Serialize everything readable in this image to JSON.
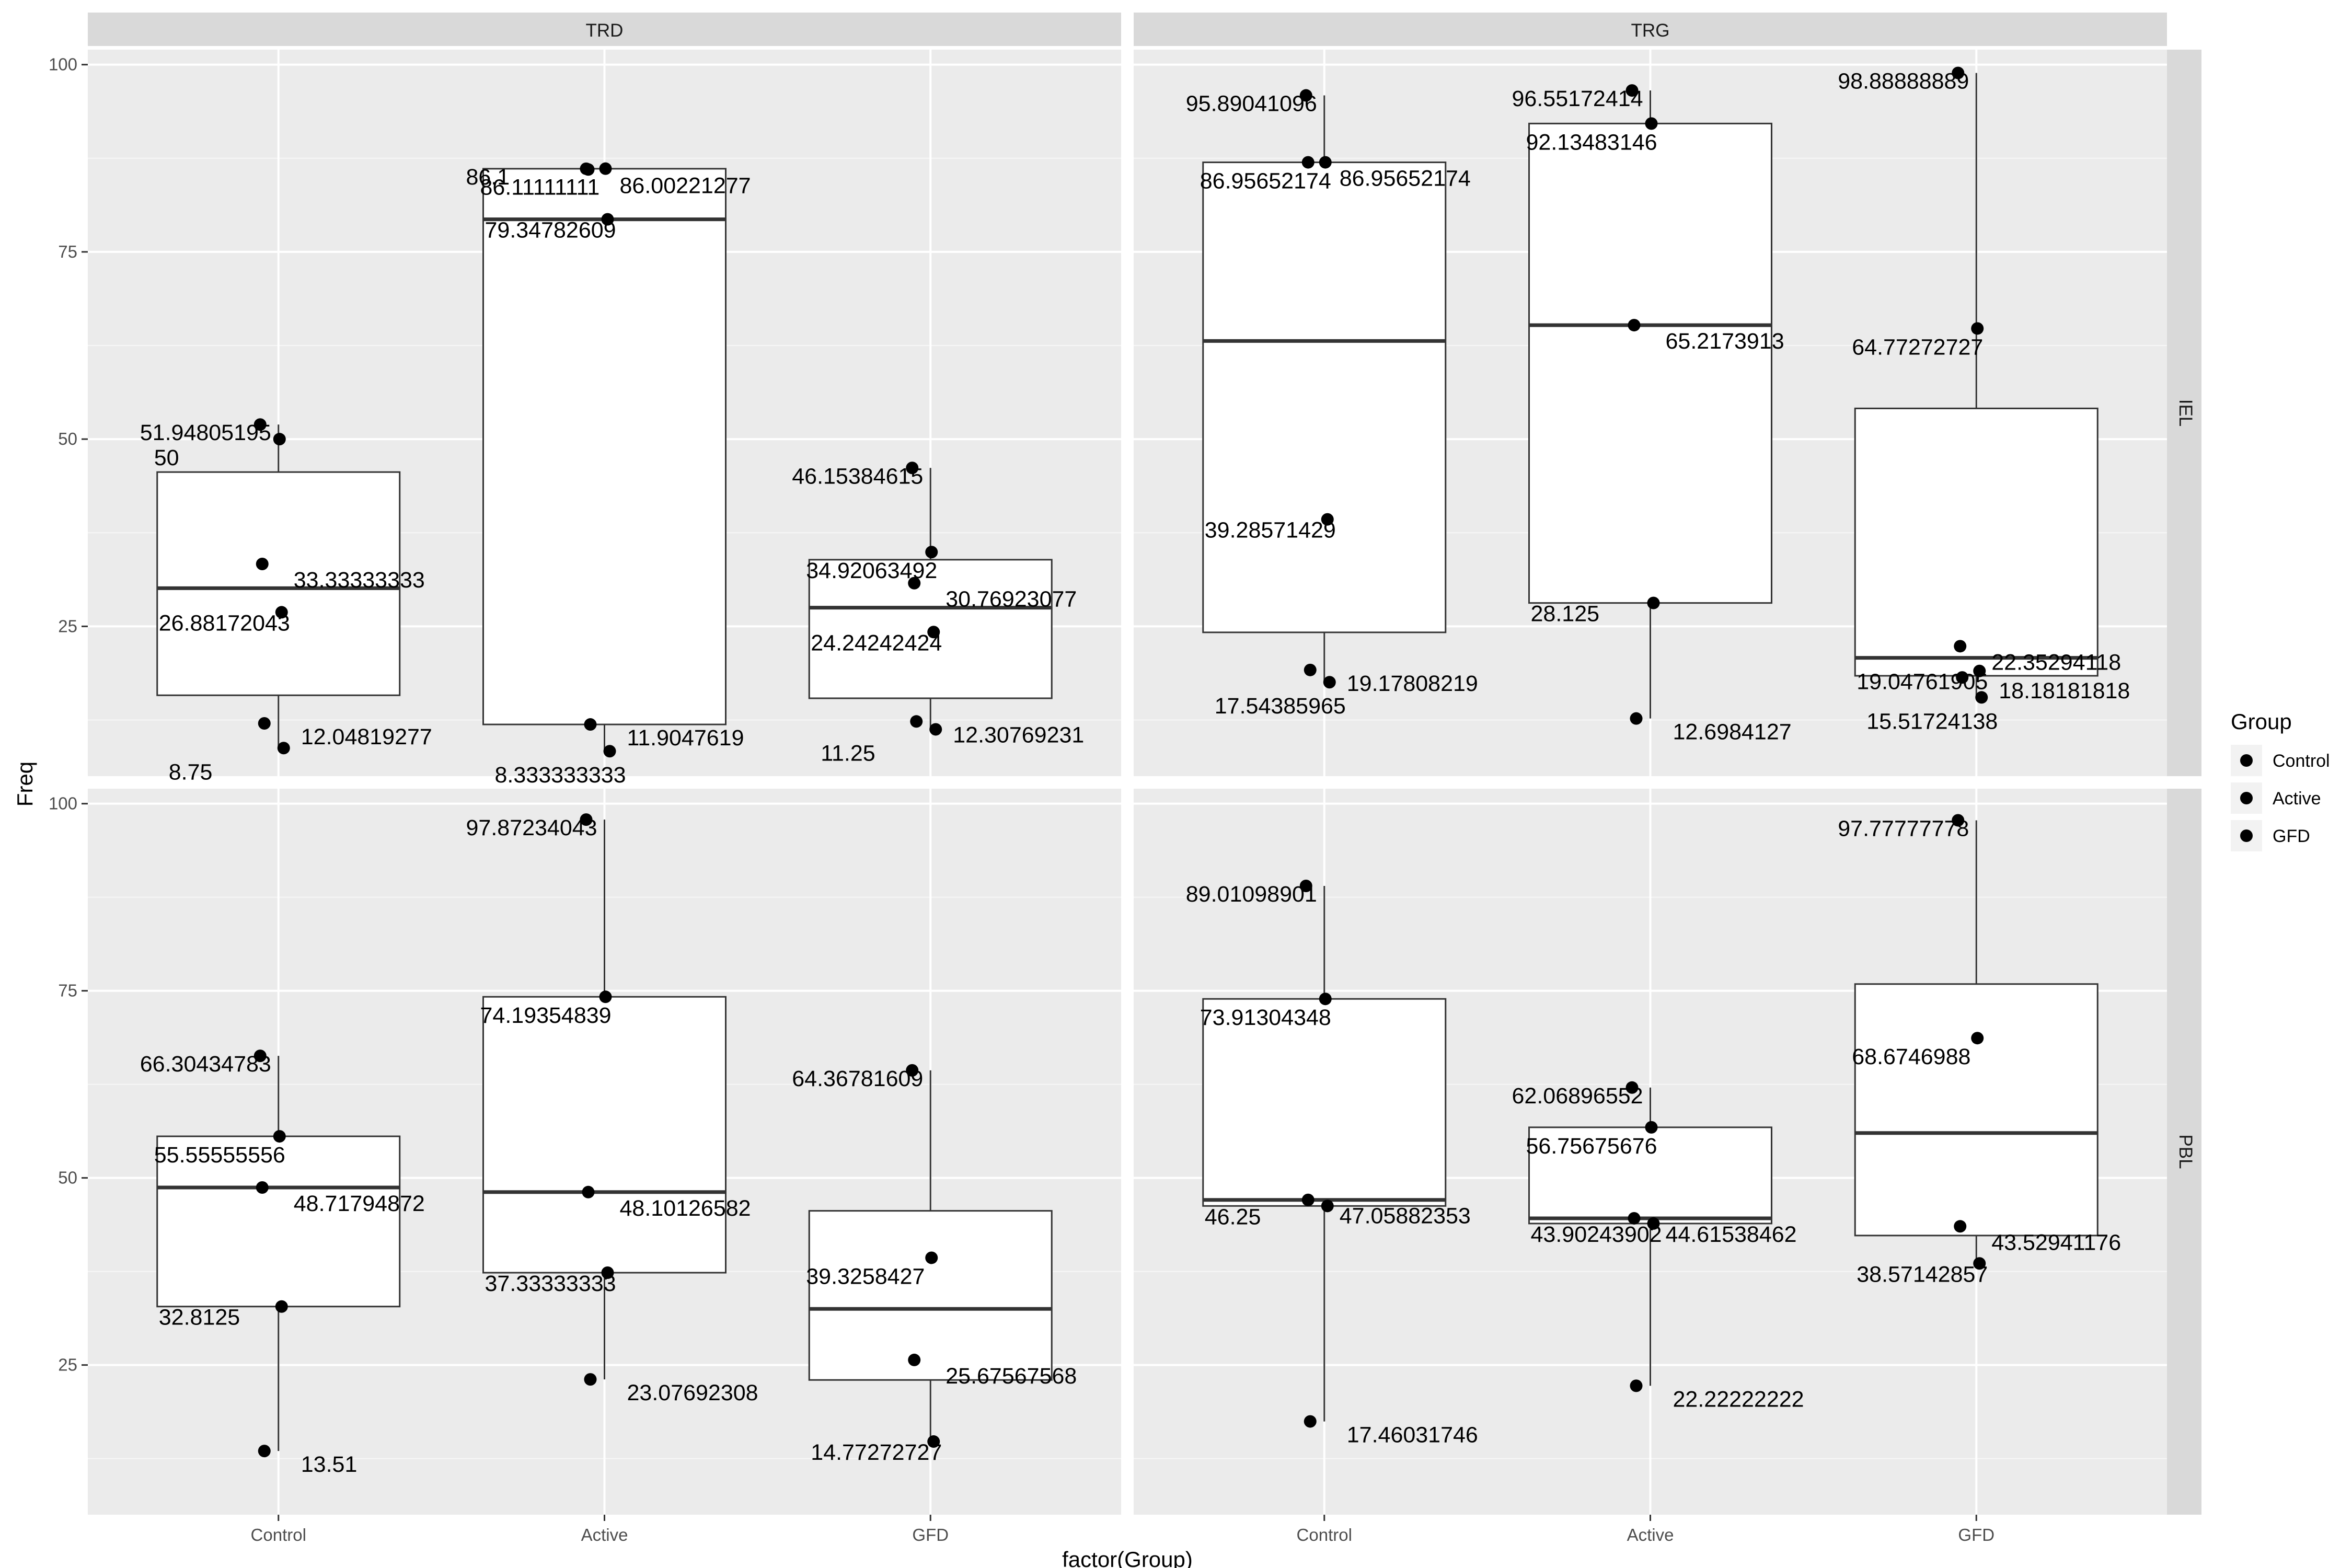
{
  "chart_data": {
    "type": "box",
    "xlabel": "factor(Group)",
    "ylabel": "Freq",
    "categories": [
      "Control",
      "Active",
      "GFD"
    ],
    "ylim": [
      5,
      102
    ],
    "yticks": [
      25,
      50,
      75,
      100
    ],
    "facet_cols": [
      "TRD",
      "TRG"
    ],
    "facet_rows": [
      "IEL",
      "PBL"
    ],
    "legend": {
      "title": "Group",
      "entries": [
        "Control",
        "Active",
        "GFD"
      ],
      "position": "right"
    },
    "grid": true,
    "panels": [
      {
        "col": "TRD",
        "row": "IEL",
        "boxes": [
          {
            "group": "Control",
            "whisker_low": 8.75,
            "q1": 15.8,
            "median": 30.1,
            "q3": 45.6,
            "whisker_high": 51.94805195,
            "points": [
              {
                "value": 51.94805195,
                "label": "51.94805195"
              },
              {
                "value": 50,
                "label": "50"
              },
              {
                "value": 33.33333333,
                "label": "33.33333333"
              },
              {
                "value": 26.88172043,
                "label": "26.88172043"
              },
              {
                "value": 12.04819277,
                "label": "12.04819277"
              },
              {
                "value": 8.75,
                "label": "8.75"
              }
            ]
          },
          {
            "group": "Active",
            "whisker_low": 8.333333333,
            "q1": 11.9047619,
            "median": 79.34782609,
            "q3": 86.1,
            "whisker_high": 86.1,
            "points": [
              {
                "value": 86.1,
                "label": "86.1"
              },
              {
                "value": 86.11111111,
                "label": "86.11111111"
              },
              {
                "value": 86.0,
                "label": "86.00221277"
              },
              {
                "value": 79.34782609,
                "label": "79.34782609"
              },
              {
                "value": 11.9047619,
                "label": "11.9047619"
              },
              {
                "value": 8.333333333,
                "label": "8.333333333"
              }
            ]
          },
          {
            "group": "GFD",
            "whisker_low": 11.25,
            "q1": 15.4,
            "median": 27.5,
            "q3": 33.9,
            "whisker_high": 46.15384615,
            "points": [
              {
                "value": 46.15384615,
                "label": "46.15384615"
              },
              {
                "value": 34.92063492,
                "label": "34.92063492"
              },
              {
                "value": 30.76923077,
                "label": "30.76923077"
              },
              {
                "value": 24.24242424,
                "label": "24.24242424"
              },
              {
                "value": 12.30769231,
                "label": "12.30769231"
              },
              {
                "value": 11.25,
                "label": "11.25"
              }
            ]
          }
        ]
      },
      {
        "col": "TRG",
        "row": "IEL",
        "boxes": [
          {
            "group": "Control",
            "whisker_low": 17.54385965,
            "q1": 24.2,
            "median": 63.1,
            "q3": 86.95652174,
            "whisker_high": 95.89041096,
            "points": [
              {
                "value": 95.89041096,
                "label": "95.89041096"
              },
              {
                "value": 86.95652174,
                "label": "86.95652174"
              },
              {
                "value": 86.95652174,
                "label": "86.95652174"
              },
              {
                "value": 39.28571429,
                "label": "39.28571429"
              },
              {
                "value": 19.17808219,
                "label": "19.17808219"
              },
              {
                "value": 17.54385965,
                "label": "17.54385965"
              }
            ]
          },
          {
            "group": "Active",
            "whisker_low": 12.6984127,
            "q1": 28.125,
            "median": 65.2173913,
            "q3": 92.13483146,
            "whisker_high": 96.55172414,
            "points": [
              {
                "value": 96.55172414,
                "label": "96.55172414"
              },
              {
                "value": 92.13483146,
                "label": "92.13483146"
              },
              {
                "value": 65.2173913,
                "label": "65.2173913"
              },
              {
                "value": 28.125,
                "label": "28.125"
              },
              {
                "value": 12.6984127,
                "label": "12.6984127"
              }
            ]
          },
          {
            "group": "GFD",
            "whisker_low": 15.51724138,
            "q1": 18.4,
            "median": 20.8,
            "q3": 54.1,
            "whisker_high": 98.88888889,
            "points": [
              {
                "value": 98.88888889,
                "label": "98.88888889"
              },
              {
                "value": 64.77272727,
                "label": "64.77272727"
              },
              {
                "value": 22.35294118,
                "label": "22.35294118"
              },
              {
                "value": 19.04761905,
                "label": "19.04761905"
              },
              {
                "value": 18.18181818,
                "label": "18.18181818"
              },
              {
                "value": 15.51724138,
                "label": "15.51724138"
              }
            ]
          }
        ]
      },
      {
        "col": "TRD",
        "row": "PBL",
        "boxes": [
          {
            "group": "Control",
            "whisker_low": 13.51,
            "q1": 32.8125,
            "median": 48.71794872,
            "q3": 55.55555556,
            "whisker_high": 66.30434783,
            "points": [
              {
                "value": 66.30434783,
                "label": "66.30434783"
              },
              {
                "value": 55.55555556,
                "label": "55.55555556"
              },
              {
                "value": 48.71794872,
                "label": "48.71794872"
              },
              {
                "value": 32.8125,
                "label": "32.8125"
              },
              {
                "value": 13.51,
                "label": "13.51"
              }
            ]
          },
          {
            "group": "Active",
            "whisker_low": 23.07692308,
            "q1": 37.33333333,
            "median": 48.10126582,
            "q3": 74.19354839,
            "whisker_high": 97.87234043,
            "points": [
              {
                "value": 97.87234043,
                "label": "97.87234043"
              },
              {
                "value": 74.19354839,
                "label": "74.19354839"
              },
              {
                "value": 48.10126582,
                "label": "48.10126582"
              },
              {
                "value": 37.33333333,
                "label": "37.33333333"
              },
              {
                "value": 23.07692308,
                "label": "23.07692308"
              }
            ]
          },
          {
            "group": "GFD",
            "whisker_low": 14.77272727,
            "q1": 23.0,
            "median": 32.5,
            "q3": 45.6,
            "whisker_high": 64.36781609,
            "points": [
              {
                "value": 64.36781609,
                "label": "64.36781609"
              },
              {
                "value": 39.3258427,
                "label": "39.3258427"
              },
              {
                "value": 25.67567568,
                "label": "25.67567568"
              },
              {
                "value": 14.77272727,
                "label": "14.77272727"
              }
            ]
          }
        ]
      },
      {
        "col": "TRG",
        "row": "PBL",
        "boxes": [
          {
            "group": "Control",
            "whisker_low": 17.46031746,
            "q1": 46.25,
            "median": 47.05882353,
            "q3": 73.91304348,
            "whisker_high": 89.01098901,
            "points": [
              {
                "value": 89.01098901,
                "label": "89.01098901"
              },
              {
                "value": 73.91304348,
                "label": "73.91304348"
              },
              {
                "value": 47.05882353,
                "label": "47.05882353"
              },
              {
                "value": 46.25,
                "label": "46.25"
              },
              {
                "value": 17.46031746,
                "label": "17.46031746"
              }
            ]
          },
          {
            "group": "Active",
            "whisker_low": 22.22222222,
            "q1": 43.90243902,
            "median": 44.6,
            "q3": 56.75675676,
            "whisker_high": 62.06896552,
            "points": [
              {
                "value": 62.06896552,
                "label": "62.06896552"
              },
              {
                "value": 56.75675676,
                "label": "56.75675676"
              },
              {
                "value": 44.6,
                "label": "44.61538462"
              },
              {
                "value": 43.90243902,
                "label": "43.90243902"
              },
              {
                "value": 22.22222222,
                "label": "22.22222222"
              }
            ]
          },
          {
            "group": "GFD",
            "whisker_low": 38.57142857,
            "q1": 42.3,
            "median": 56.0,
            "q3": 75.9,
            "whisker_high": 97.77777778,
            "points": [
              {
                "value": 97.77777778,
                "label": "97.77777778"
              },
              {
                "value": 68.6746988,
                "label": "68.6746988"
              },
              {
                "value": 43.52941176,
                "label": "43.52941176"
              },
              {
                "value": 38.57142857,
                "label": "38.57142857"
              }
            ]
          }
        ]
      }
    ]
  }
}
